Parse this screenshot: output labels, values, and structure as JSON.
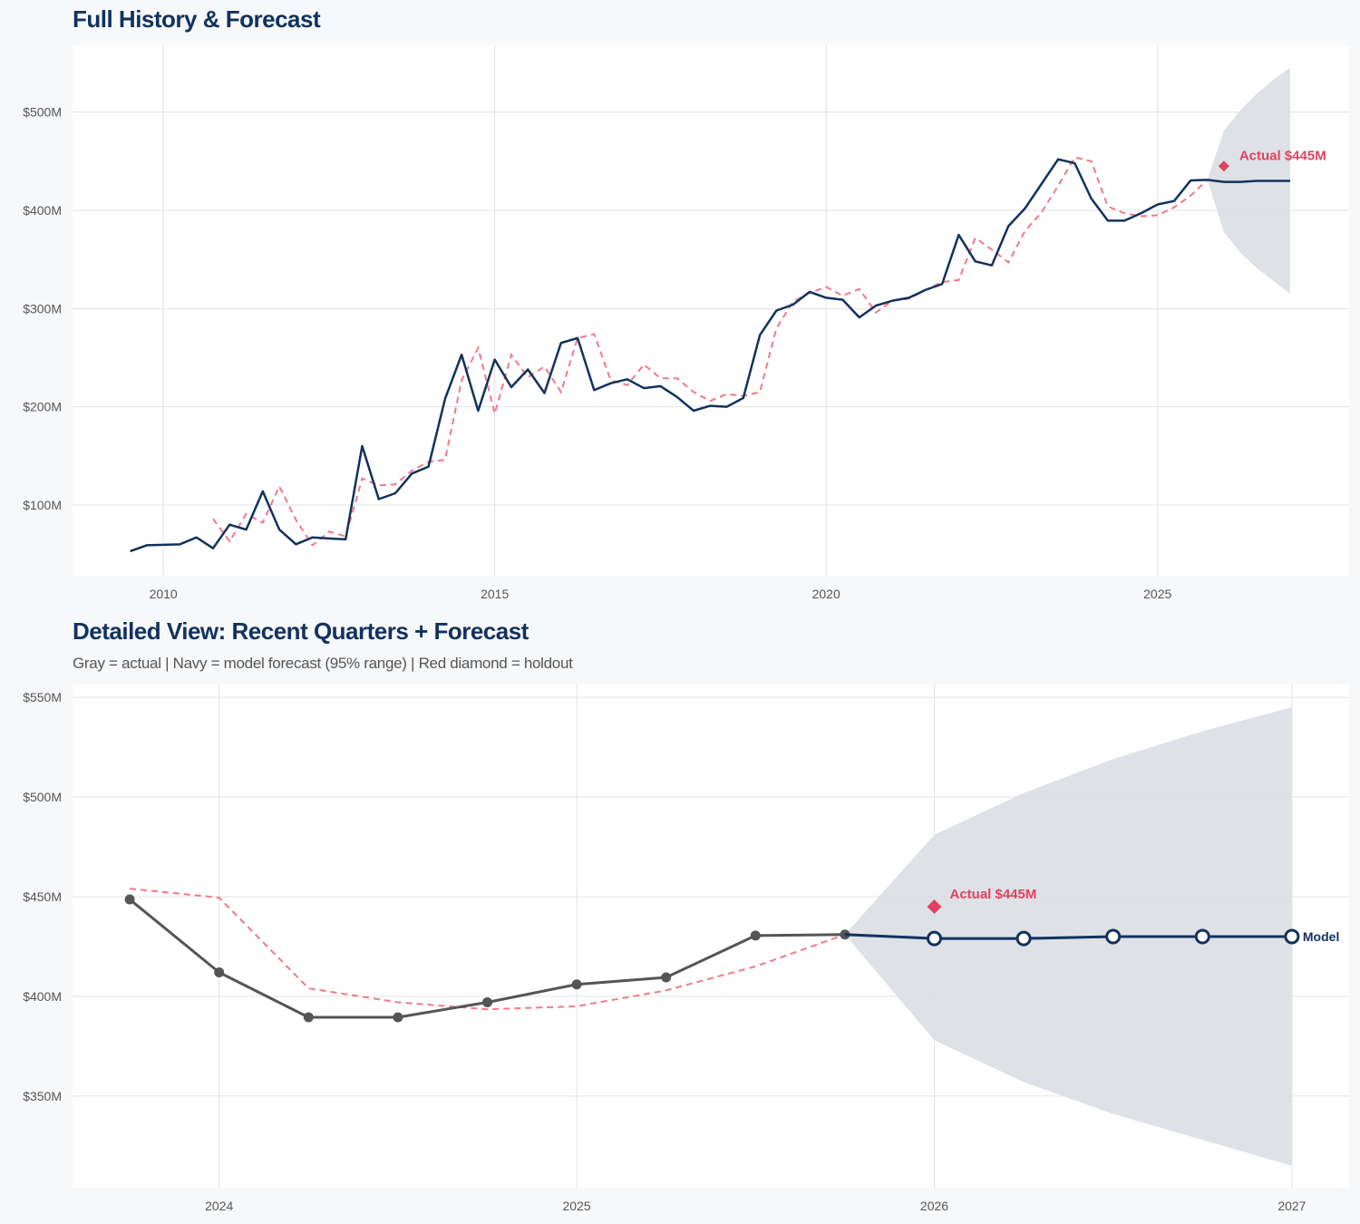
{
  "colors": {
    "navy": "#12325e",
    "gray_actual": "#555555",
    "dashed": "#f07a8c",
    "holdout": "#e0435f",
    "band": "#dcdfe5",
    "grid": "#e3e3e3"
  },
  "chart_data": [
    {
      "type": "line",
      "title": "Full History & Forecast",
      "xlim": [
        2008.63,
        2027.89
      ],
      "ylim": [
        28,
        568
      ],
      "x_ticks": [
        2010,
        2015,
        2020,
        2025
      ],
      "x_tick_labels": [
        "2010",
        "2015",
        "2020",
        "2025"
      ],
      "y_ticks": [
        100,
        200,
        300,
        400,
        500
      ],
      "y_tick_labels": [
        "$100M",
        "$200M",
        "$300M",
        "$400M",
        "$500M"
      ],
      "grid": true,
      "actual": {
        "x_start": 2009.5,
        "step": 0.25,
        "values": [
          53,
          59,
          59.5,
          60,
          67,
          56,
          80,
          75,
          114,
          75,
          60,
          67,
          66,
          65,
          160,
          106,
          112,
          132,
          139,
          208,
          253,
          196,
          248,
          220,
          238,
          214,
          265,
          270,
          217,
          224,
          228,
          219,
          221,
          210,
          196,
          201,
          200,
          209,
          273,
          298,
          304,
          317,
          311,
          309,
          291,
          303,
          308,
          311,
          319,
          325,
          375,
          348,
          344,
          384,
          402,
          427,
          452,
          448,
          412,
          389.5,
          389.5,
          397,
          406,
          409.5,
          430.5,
          431
        ]
      },
      "dashed": {
        "x_start": 2010.75,
        "step": 0.25,
        "values": [
          86,
          63,
          91,
          82,
          119,
          85,
          59,
          73,
          68,
          127,
          120,
          121,
          135,
          144,
          146,
          227,
          260,
          193,
          253,
          230,
          241,
          215,
          270,
          274,
          227,
          222,
          243,
          229,
          229,
          215,
          206,
          213,
          211,
          215,
          280,
          307,
          316,
          322,
          313,
          320,
          296,
          308,
          310,
          319,
          327,
          329,
          372,
          360,
          347,
          379,
          398,
          425,
          454,
          450,
          404,
          397,
          394,
          395,
          403,
          415,
          431
        ]
      },
      "forecast": {
        "x": [
          2025.75,
          2026.0,
          2026.25,
          2026.5,
          2026.75,
          2027.0
        ],
        "values": [
          431,
          429,
          429,
          430,
          430,
          430
        ],
        "lower": [
          431,
          378,
          357,
          341,
          328,
          315
        ],
        "upper": [
          431,
          481,
          502,
          519,
          533,
          545
        ]
      },
      "holdout": {
        "x": 2026.0,
        "value": 445,
        "label": "Actual $445M"
      }
    },
    {
      "type": "line",
      "title": "Detailed View: Recent Quarters + Forecast",
      "subtitle": "Gray = actual  |  Navy = model forecast (95% range)  |  Red diamond = holdout",
      "xlim": [
        2023.59,
        2027.16
      ],
      "ylim": [
        304,
        556.4
      ],
      "x_ticks": [
        2024,
        2025,
        2026,
        2027
      ],
      "x_tick_labels": [
        "2024",
        "2025",
        "2026",
        "2027"
      ],
      "y_ticks": [
        350,
        400,
        450,
        500,
        550
      ],
      "y_tick_labels": [
        "$350M",
        "$400M",
        "$450M",
        "$500M",
        "$550M"
      ],
      "grid": true,
      "actual": {
        "x_start": 2023.75,
        "step": 0.25,
        "values": [
          448.6,
          412,
          389.5,
          389.5,
          397,
          406,
          409.5,
          430.5,
          431
        ]
      },
      "dashed": {
        "x_start": 2023.75,
        "step": 0.25,
        "values": [
          454,
          449.5,
          404,
          397,
          393.5,
          395,
          403,
          415,
          431
        ]
      },
      "forecast": {
        "x": [
          2025.75,
          2026.0,
          2026.25,
          2026.5,
          2026.75,
          2027.0
        ],
        "values": [
          431,
          429,
          429,
          430,
          430,
          430
        ],
        "lower": [
          431,
          378,
          357,
          341,
          328,
          315
        ],
        "upper": [
          431,
          481,
          502,
          519,
          533,
          545
        ],
        "end_label": "Model"
      },
      "holdout": {
        "x": 2026.0,
        "value": 445,
        "label": "Actual $445M"
      }
    }
  ]
}
